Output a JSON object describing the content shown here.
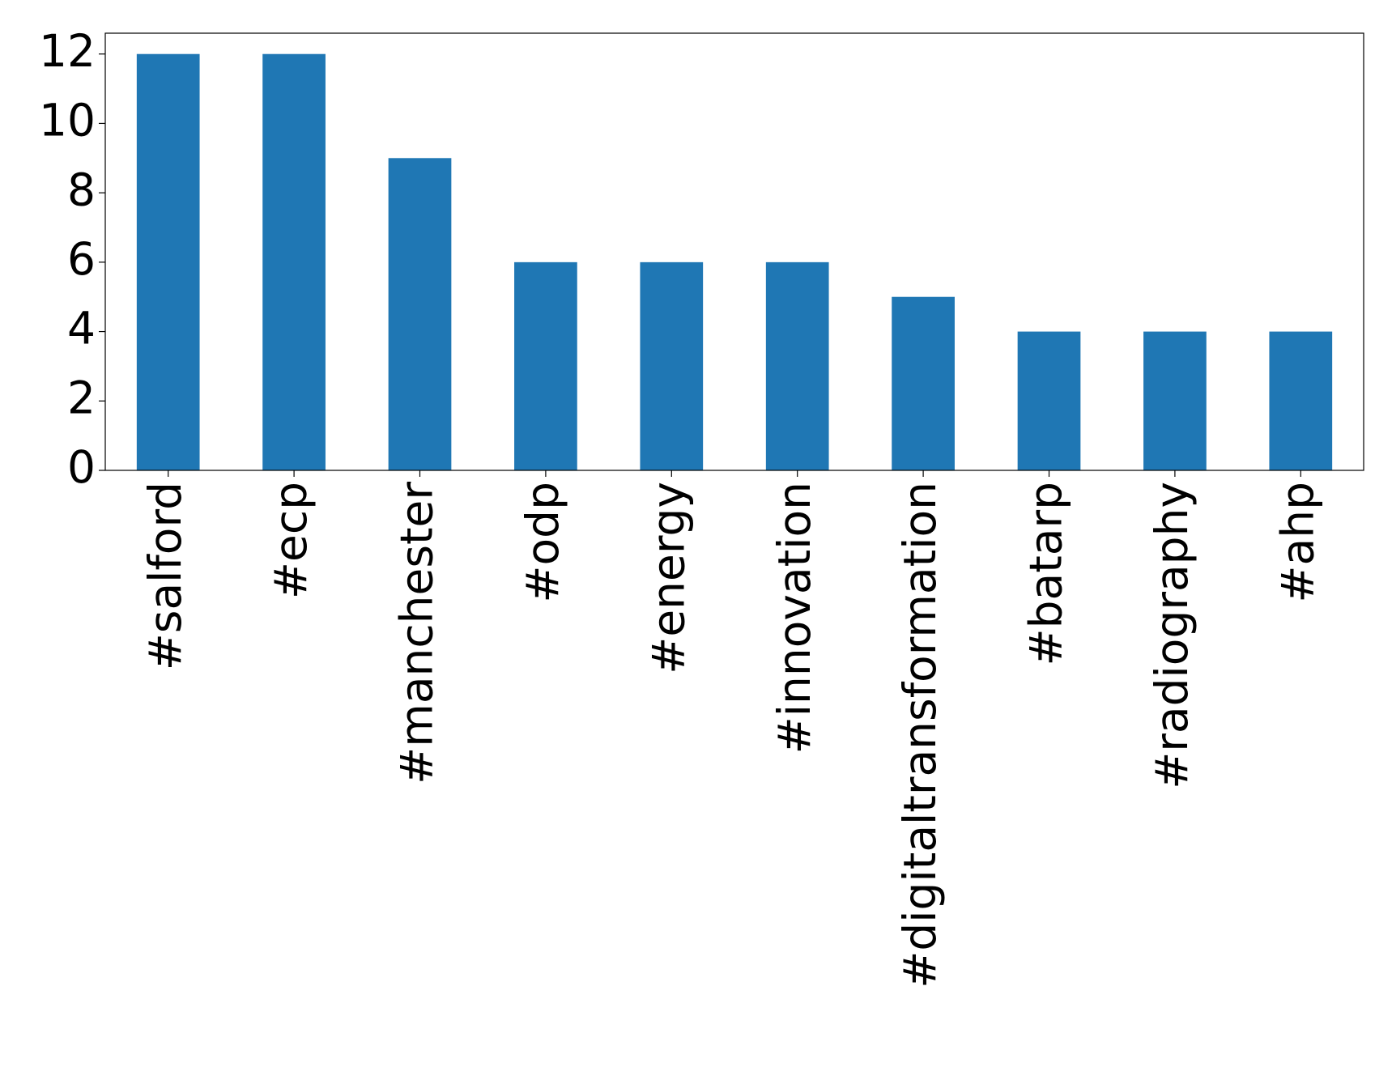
{
  "chart_data": {
    "type": "bar",
    "categories": [
      "#salford",
      "#ecp",
      "#manchester",
      "#odp",
      "#energy",
      "#innovation",
      "#digitaltransformation",
      "#batarp",
      "#radiography",
      "#ahp"
    ],
    "values": [
      12,
      12,
      9,
      6,
      6,
      6,
      5,
      4,
      4,
      4
    ],
    "color": "#1f77b4",
    "ylim": [
      0,
      12.6
    ],
    "yticks": [
      0,
      2,
      4,
      6,
      8,
      10,
      12
    ],
    "grid": false
  }
}
